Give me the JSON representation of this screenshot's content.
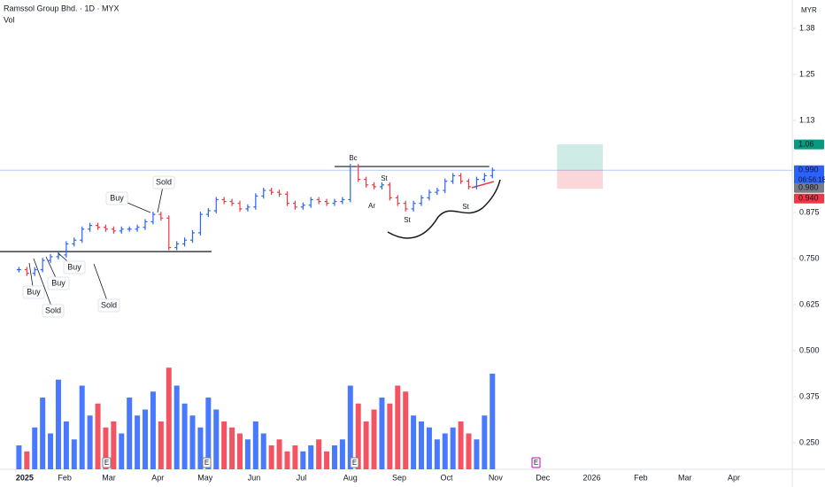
{
  "chart_data": {
    "type": "ohlc",
    "title": "Ramssol Group Bhd. · 1D · MYX",
    "subtitle": "Vol",
    "currency": "MYR",
    "x": [
      2,
      7,
      12,
      17,
      22,
      27,
      32,
      37,
      42,
      47,
      52,
      57,
      62,
      67,
      72,
      77,
      82,
      87,
      92,
      97,
      102,
      107,
      112,
      117,
      122,
      127,
      132,
      137,
      142,
      147,
      152,
      157,
      162,
      167,
      172,
      177,
      182,
      187,
      192,
      197,
      202,
      207,
      212,
      217,
      222,
      227,
      232,
      237,
      242,
      247,
      252,
      257,
      262,
      267,
      272,
      277,
      282,
      287,
      292,
      297,
      302
    ],
    "series": [
      {
        "name": "Price",
        "color": "#2962ff",
        "down_color": "#f23645",
        "values": [
          0.72,
          0.71,
          0.72,
          0.745,
          0.755,
          0.76,
          0.79,
          0.8,
          0.83,
          0.84,
          0.835,
          0.83,
          0.825,
          0.83,
          0.83,
          0.835,
          0.85,
          0.87,
          0.86,
          0.78,
          0.79,
          0.8,
          0.82,
          0.87,
          0.88,
          0.91,
          0.905,
          0.9,
          0.885,
          0.89,
          0.92,
          0.935,
          0.93,
          0.925,
          0.9,
          0.89,
          0.895,
          0.91,
          0.905,
          0.9,
          0.905,
          0.91,
          1.0,
          0.965,
          0.95,
          0.945,
          0.95,
          0.915,
          0.9,
          0.885,
          0.9,
          0.915,
          0.93,
          0.935,
          0.96,
          0.975,
          0.96,
          0.945,
          0.965,
          0.975,
          0.99
        ]
      },
      {
        "name": "Vol",
        "axis": "volume",
        "values": [
          20,
          15,
          35,
          60,
          30,
          75,
          40,
          25,
          70,
          45,
          55,
          35,
          40,
          30,
          60,
          45,
          50,
          65,
          40,
          85,
          70,
          55,
          45,
          35,
          60,
          50,
          40,
          35,
          30,
          25,
          40,
          30,
          20,
          25,
          15,
          20,
          15,
          20,
          25,
          15,
          20,
          25,
          70,
          55,
          40,
          50,
          60,
          55,
          70,
          65,
          45,
          40,
          35,
          25,
          30,
          35,
          40,
          30,
          25,
          45,
          80
        ]
      }
    ],
    "xlim": [
      -10,
      492
    ],
    "xticks": [
      {
        "value": 0,
        "label": "2025"
      },
      {
        "value": 31,
        "label": "Feb"
      },
      {
        "value": 59,
        "label": "Mar"
      },
      {
        "value": 90,
        "label": "Apr"
      },
      {
        "value": 120,
        "label": "May"
      },
      {
        "value": 151,
        "label": "Jun"
      },
      {
        "value": 181,
        "label": "Jul"
      },
      {
        "value": 212,
        "label": "Aug"
      },
      {
        "value": 243,
        "label": "Sep"
      },
      {
        "value": 273,
        "label": "Oct"
      },
      {
        "value": 304,
        "label": "Nov"
      },
      {
        "value": 334,
        "label": "Dec"
      },
      {
        "value": 365,
        "label": "2026"
      },
      {
        "value": 396,
        "label": "Feb"
      },
      {
        "value": 424,
        "label": "Mar"
      },
      {
        "value": 455,
        "label": "Apr"
      }
    ],
    "ylim": [
      0.178,
      1.452
    ],
    "yticks": [
      {
        "value": 1.375,
        "label": "1.38"
      },
      {
        "value": 1.25,
        "label": "1.25"
      },
      {
        "value": 1.125,
        "label": "1.13"
      },
      0.875,
      {
        "value": 0.75,
        "label": "0.750"
      },
      0.625,
      {
        "value": 0.5,
        "label": "0.500"
      },
      0.375,
      {
        "value": 0.25,
        "label": "0.250"
      }
    ],
    "volume_lim": [
      0,
      100
    ],
    "levels": [
      {
        "value": 0.769,
        "x": [
          -10,
          124
        ]
      },
      {
        "value": 1.0,
        "x": [
          202,
          300
        ]
      }
    ],
    "position": {
      "x": [
        343,
        372
      ],
      "target": 1.06,
      "entry": 0.99,
      "stop": 0.94
    },
    "price_labels": [
      {
        "value": 1.06,
        "label": "1.06",
        "color": "#089981"
      },
      {
        "value": 0.99,
        "label": "0.990",
        "color": "#2962ff",
        "countdown": "06:56:18"
      },
      {
        "value": 0.98,
        "label": "0.980",
        "color": "#787b86"
      },
      {
        "value": 0.94,
        "label": "0.940",
        "color": "#f23645"
      }
    ],
    "annotations": [
      "Buy",
      "Sold",
      "Buy",
      "Buy",
      "Buy",
      "Sold",
      "Sold",
      "Bc",
      "St",
      "Ar",
      "St",
      "St"
    ],
    "earnings_marker": "E"
  }
}
